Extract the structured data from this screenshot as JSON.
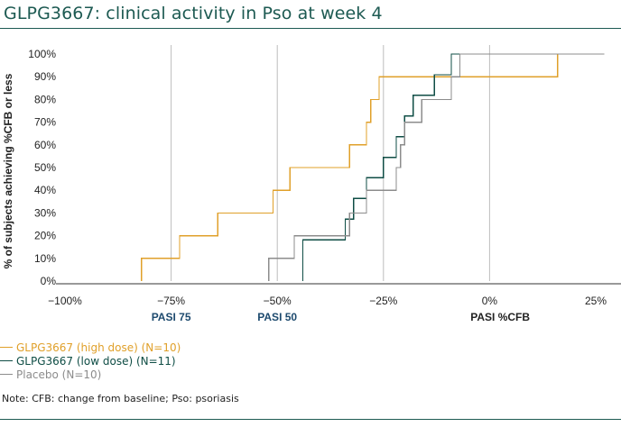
{
  "title": "GLPG3667: clinical activity in Pso at week 4",
  "note": "Note: CFB: change from baseline; Pso: psoriasis",
  "colors": {
    "brand": "#1d5a52",
    "high": "#e0a02a",
    "low": "#0f4d45",
    "placebo": "#8c8c8c",
    "ref_label": "#1d4a6e"
  },
  "chart_data": {
    "type": "line",
    "step": true,
    "title": "",
    "xlabel": "PASI %CFB",
    "ylabel": "% of subjects achieving %CFB or less",
    "xlim": [
      -100,
      25
    ],
    "ylim": [
      0,
      100
    ],
    "x_ticks": [
      "−100%",
      "−75%",
      "−50%",
      "−25%",
      "0%",
      "25%"
    ],
    "y_ticks": [
      "0%",
      "10%",
      "20%",
      "30%",
      "40%",
      "50%",
      "60%",
      "70%",
      "80%",
      "90%",
      "100%"
    ],
    "reference_labels": [
      "PASI 75",
      "PASI 50"
    ],
    "grid": "vertical",
    "legend_position": "bottom-left",
    "series": [
      {
        "name": "GLPG3667 (high dose) (N=10)",
        "color": "#e0a02a",
        "x": [
          -82,
          -73,
          -64,
          -51,
          -47,
          -33,
          -29,
          -28,
          -26,
          16,
          16
        ],
        "y": [
          10,
          20,
          30,
          40,
          50,
          60,
          70,
          80,
          90,
          100,
          100
        ]
      },
      {
        "name": "GLPG3667 (low dose) (N=11)",
        "color": "#0f4d45",
        "x": [
          -44,
          -34,
          -32,
          -29,
          -25,
          -22,
          -20,
          -18,
          -13,
          -9,
          5,
          20,
          20
        ],
        "y": [
          18.2,
          27.3,
          36.4,
          45.5,
          54.5,
          63.6,
          72.7,
          81.8,
          90.9,
          100,
          100,
          100,
          100
        ]
      },
      {
        "name": "Placebo (N=10)",
        "color": "#8c8c8c",
        "x": [
          -52,
          -46,
          -33,
          -29,
          -22,
          -21,
          -20,
          -16,
          -9,
          -7,
          27
        ],
        "y": [
          10,
          20,
          30,
          40,
          50,
          60,
          70,
          80,
          90,
          100,
          100
        ]
      }
    ]
  }
}
